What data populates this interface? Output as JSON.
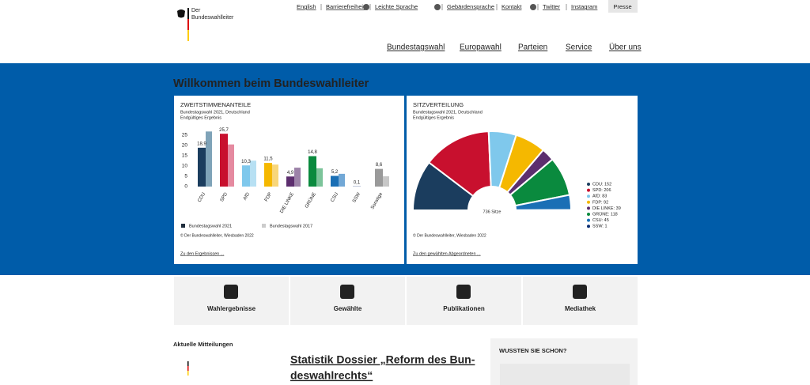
{
  "header": {
    "logo": [
      "Der",
      "Bundeswahlleiter"
    ],
    "top_links": [
      "English",
      "Barrierefreiheit",
      "Leichte Sprache",
      "Gebärdensprache",
      "Kontakt",
      "Twitter",
      "Instagram"
    ],
    "press": "Presse",
    "nav": [
      "Bundestagswahl",
      "Europawahl",
      "Parteien",
      "Service",
      "Über uns"
    ]
  },
  "hero": {
    "title": "Willkommen beim Bundeswahlleiter"
  },
  "chart_data": [
    {
      "type": "bar",
      "title": "ZWEITSTIMMENANTEILE",
      "subtitle": [
        "Bundestagswahl 2021, Deutschland",
        "Endgültiges Ergebnis"
      ],
      "categories": [
        "CDU",
        "SPD",
        "AfD",
        "FDP",
        "DIE LINKE",
        "GRÜNE",
        "CSU",
        "SSW",
        "Sonstige"
      ],
      "series": [
        {
          "name": "Bundestagswahl 2021",
          "color": "#1f2d3d",
          "colors": [
            "#1b3d5e",
            "#c8102e",
            "#7fc8ec",
            "#f5b800",
            "#5c2e6e",
            "#0a8a3e",
            "#1a6fb5",
            "#0c2e73",
            "#9a9a9a"
          ],
          "values": [
            18.9,
            25.7,
            10.3,
            11.5,
            4.9,
            14.8,
            5.2,
            0.1,
            8.6
          ],
          "value_labels": [
            "18,9",
            "25,7",
            "10,3",
            "11,5",
            "4,9",
            "14,8",
            "5,2",
            "0,1",
            "8,6"
          ]
        },
        {
          "name": "Bundestagswahl 2017",
          "color": "#cccccc",
          "colors": [
            "#7fa3b8",
            "#e58aa0",
            "#b7e0f3",
            "#f8d67a",
            "#9c82a8",
            "#7cc49a",
            "#72a8d6",
            "#6b82ad",
            "#c7c7c7"
          ],
          "values": [
            26.8,
            20.5,
            12.6,
            10.7,
            9.2,
            8.9,
            6.2,
            null,
            5.0
          ]
        }
      ],
      "ylim": [
        0,
        28
      ],
      "yticks": [
        0,
        5,
        10,
        15,
        20,
        25
      ],
      "grid": false,
      "source": "© Der Bundeswahlleiter, Wiesbaden 2022",
      "link": "Zu den Ergebnissen ..."
    },
    {
      "type": "semicircle",
      "title": "SITZVERTEILUNG",
      "subtitle": [
        "Bundestagswahl 2021, Deutschland",
        "Endgültiges Ergebnis"
      ],
      "categories": [
        "CDU",
        "SPD",
        "AfD",
        "FDP",
        "DIE LINKE",
        "GRÜNE",
        "CSU",
        "SSW"
      ],
      "values": [
        152,
        206,
        83,
        92,
        39,
        118,
        45,
        1
      ],
      "value_labels": [
        "CDU: 152",
        "SPD: 206",
        "AfD: 83",
        "FDP: 92",
        "DIE LINKE: 39",
        "GRÜNE: 118",
        "CSU: 45",
        "SSW: 1"
      ],
      "colors": [
        "#1b3d5e",
        "#c8102e",
        "#7fc8ec",
        "#f5b800",
        "#5c2e6e",
        "#0a8a3e",
        "#1a6fb5",
        "#0c2e73"
      ],
      "center_label": "736 Sitze",
      "source": "© Der Bundeswahlleiter, Wiesbaden 2022",
      "link": "Zu den gewählten Abgeordneten ..."
    }
  ],
  "tiles": [
    "Wahlergebnisse",
    "Gewählte",
    "Publikationen",
    "Mediathek"
  ],
  "news": {
    "heading": "Aktuelle Mitteilungen",
    "headline": [
      "Statistik Dossier „Reform des Bun-",
      "deswahlrechts“"
    ]
  },
  "sidebar": {
    "heading": "WUSSTEN SIE SCHON?"
  }
}
